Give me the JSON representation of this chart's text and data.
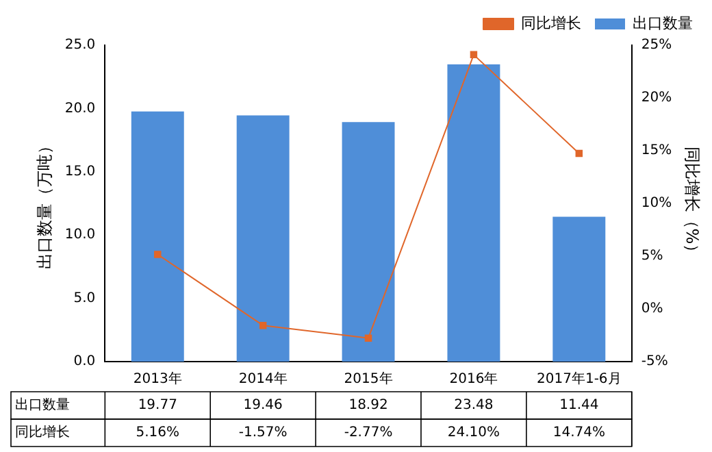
{
  "chart_data": {
    "type": "bar",
    "xlabel": null,
    "ylabel": "出口数量（万吨）",
    "y2label": "同比增长（%）",
    "categories": [
      "2013年",
      "2014年",
      "2015年",
      "2016年",
      "2017年1-6月"
    ],
    "series": [
      {
        "name": "出口数量",
        "color": "#4f8ed8",
        "values": [
          19.77,
          19.46,
          18.92,
          23.48,
          11.44
        ],
        "value_labels": [
          "19.77",
          "19.46",
          "18.92",
          "23.48",
          "11.44"
        ]
      },
      {
        "name": "同比增长",
        "type": "line",
        "axis": "y2",
        "color": "#e0662a",
        "values": [
          5.16,
          -1.57,
          -2.77,
          24.1,
          14.74
        ],
        "value_labels": [
          "5.16%",
          "-1.57%",
          "-2.77%",
          "24.10%",
          "14.74%"
        ]
      }
    ],
    "ylim": [
      0,
      25
    ],
    "yticks": [
      {
        "value": 0,
        "label": "0.0"
      },
      {
        "value": 5,
        "label": "5.0"
      },
      {
        "value": 10,
        "label": "10.0"
      },
      {
        "value": 15,
        "label": "15.0"
      },
      {
        "value": 20,
        "label": "20.0"
      },
      {
        "value": 25,
        "label": "25.0"
      }
    ],
    "y2lim": [
      -5,
      25
    ],
    "y2ticks": [
      {
        "value": -5,
        "label": "-5%"
      },
      {
        "value": 0,
        "label": "0%"
      },
      {
        "value": 5,
        "label": "5%"
      },
      {
        "value": 10,
        "label": "10%"
      },
      {
        "value": 15,
        "label": "15%"
      },
      {
        "value": 20,
        "label": "20%"
      },
      {
        "value": 25,
        "label": "25%"
      }
    ],
    "grid": false,
    "legend": "top right",
    "marker": "square",
    "line_style": "solid"
  }
}
